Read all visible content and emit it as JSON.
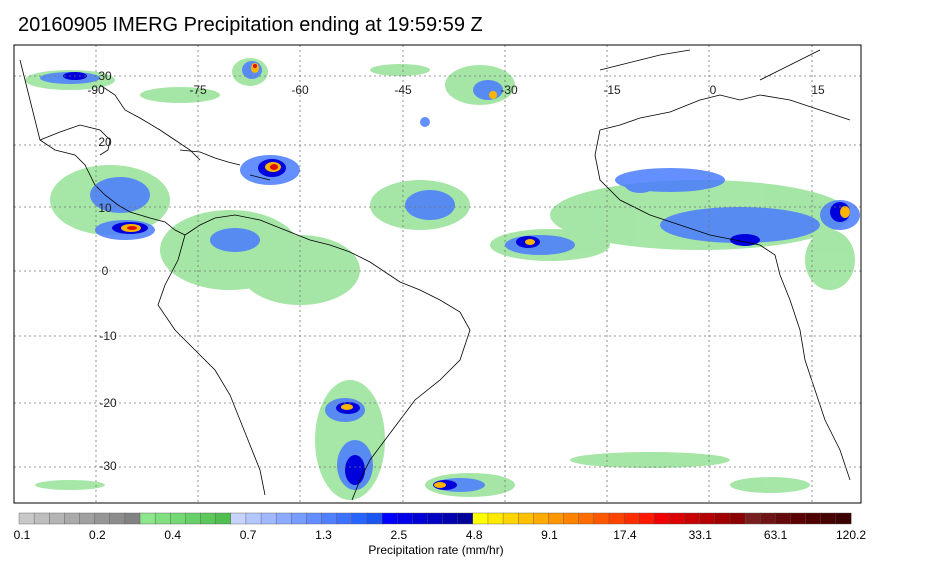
{
  "title": "20160905 IMERG Precipitation ending at 19:59:59 Z",
  "map": {
    "lon_range": [
      -100,
      25
    ],
    "lat_range": [
      -37,
      37
    ],
    "lon_labels": [
      "-90",
      "-75",
      "-60",
      "-45",
      "-30",
      "-15",
      "0",
      "15"
    ],
    "lat_labels": [
      "30",
      "20",
      "10",
      "0",
      "-10",
      "-20",
      "-30"
    ]
  },
  "colorbar": {
    "label": "Precipitation rate (mm/hr)",
    "tick_labels": [
      "0.1",
      "0.2",
      "0.4",
      "0.7",
      "1.3",
      "2.5",
      "4.8",
      "9.1",
      "17.4",
      "33.1",
      "63.1",
      "120.2"
    ],
    "colors": [
      "#c8c8c8",
      "#bebebe",
      "#b4b4b4",
      "#aaaaaa",
      "#a0a0a0",
      "#969696",
      "#8c8c8c",
      "#828282",
      "#8ce68c",
      "#80e080",
      "#74d874",
      "#68d068",
      "#5cc85c",
      "#50bf50",
      "#c8d2ff",
      "#b4c6ff",
      "#a0b8ff",
      "#8caaff",
      "#789cff",
      "#648eff",
      "#5080ff",
      "#3c72ff",
      "#2864ff",
      "#1c56f0",
      "#0000ff",
      "#0000eb",
      "#0000d7",
      "#0000c3",
      "#0000af",
      "#00009b",
      "#ffff00",
      "#ffea00",
      "#ffd500",
      "#ffc000",
      "#ffab00",
      "#ff9600",
      "#ff8200",
      "#ff6d00",
      "#ff5800",
      "#ff4300",
      "#ff2e00",
      "#ff1900",
      "#f00000",
      "#dc0000",
      "#c80000",
      "#b40000",
      "#a00000",
      "#8c0000",
      "#781e1e",
      "#6e1414",
      "#640a0a",
      "#5a0000",
      "#500000",
      "#460000",
      "#3c0000"
    ]
  }
}
